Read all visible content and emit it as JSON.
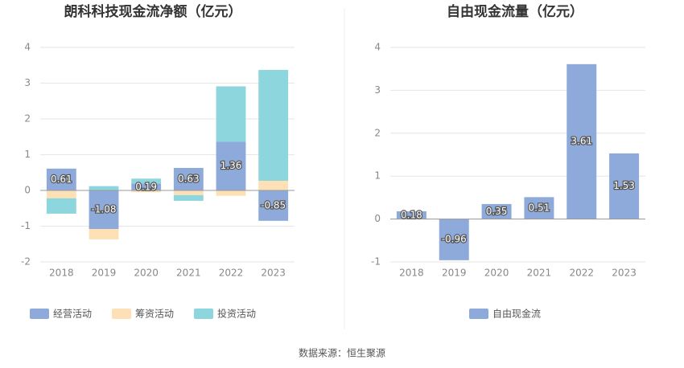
{
  "chart_data": [
    {
      "type": "bar",
      "stacked": true,
      "title": "朗科科技现金流净额（亿元）",
      "categories": [
        "2018",
        "2019",
        "2020",
        "2021",
        "2022",
        "2023"
      ],
      "series": [
        {
          "name": "经营活动",
          "color": "#8eaadb",
          "show_labels": true,
          "values": [
            0.61,
            -1.08,
            0.19,
            0.63,
            1.36,
            -0.85
          ]
        },
        {
          "name": "筹资活动",
          "color": "#fde0b5",
          "show_labels": false,
          "values": [
            -0.22,
            -0.29,
            -0.05,
            -0.13,
            -0.15,
            0.27
          ]
        },
        {
          "name": "投资活动",
          "color": "#8dd6dd",
          "show_labels": false,
          "values": [
            -0.43,
            0.12,
            0.14,
            -0.16,
            1.55,
            3.1
          ]
        }
      ],
      "ylim": [
        -2,
        4
      ],
      "yticks": [
        -2,
        -1,
        0,
        1,
        2,
        3,
        4
      ],
      "grid": true,
      "legend": "bottom"
    },
    {
      "type": "bar",
      "stacked": false,
      "title": "自由现金流量（亿元）",
      "categories": [
        "2018",
        "2019",
        "2020",
        "2021",
        "2022",
        "2023"
      ],
      "series": [
        {
          "name": "自由现金流",
          "color": "#8eaadb",
          "show_labels": true,
          "values": [
            0.18,
            -0.96,
            0.35,
            0.51,
            3.61,
            1.53
          ]
        }
      ],
      "ylim": [
        -1,
        4
      ],
      "yticks": [
        -1,
        0,
        1,
        2,
        3,
        4
      ],
      "grid": true,
      "legend": "bottom"
    }
  ],
  "source": "数据来源：恒生聚源"
}
